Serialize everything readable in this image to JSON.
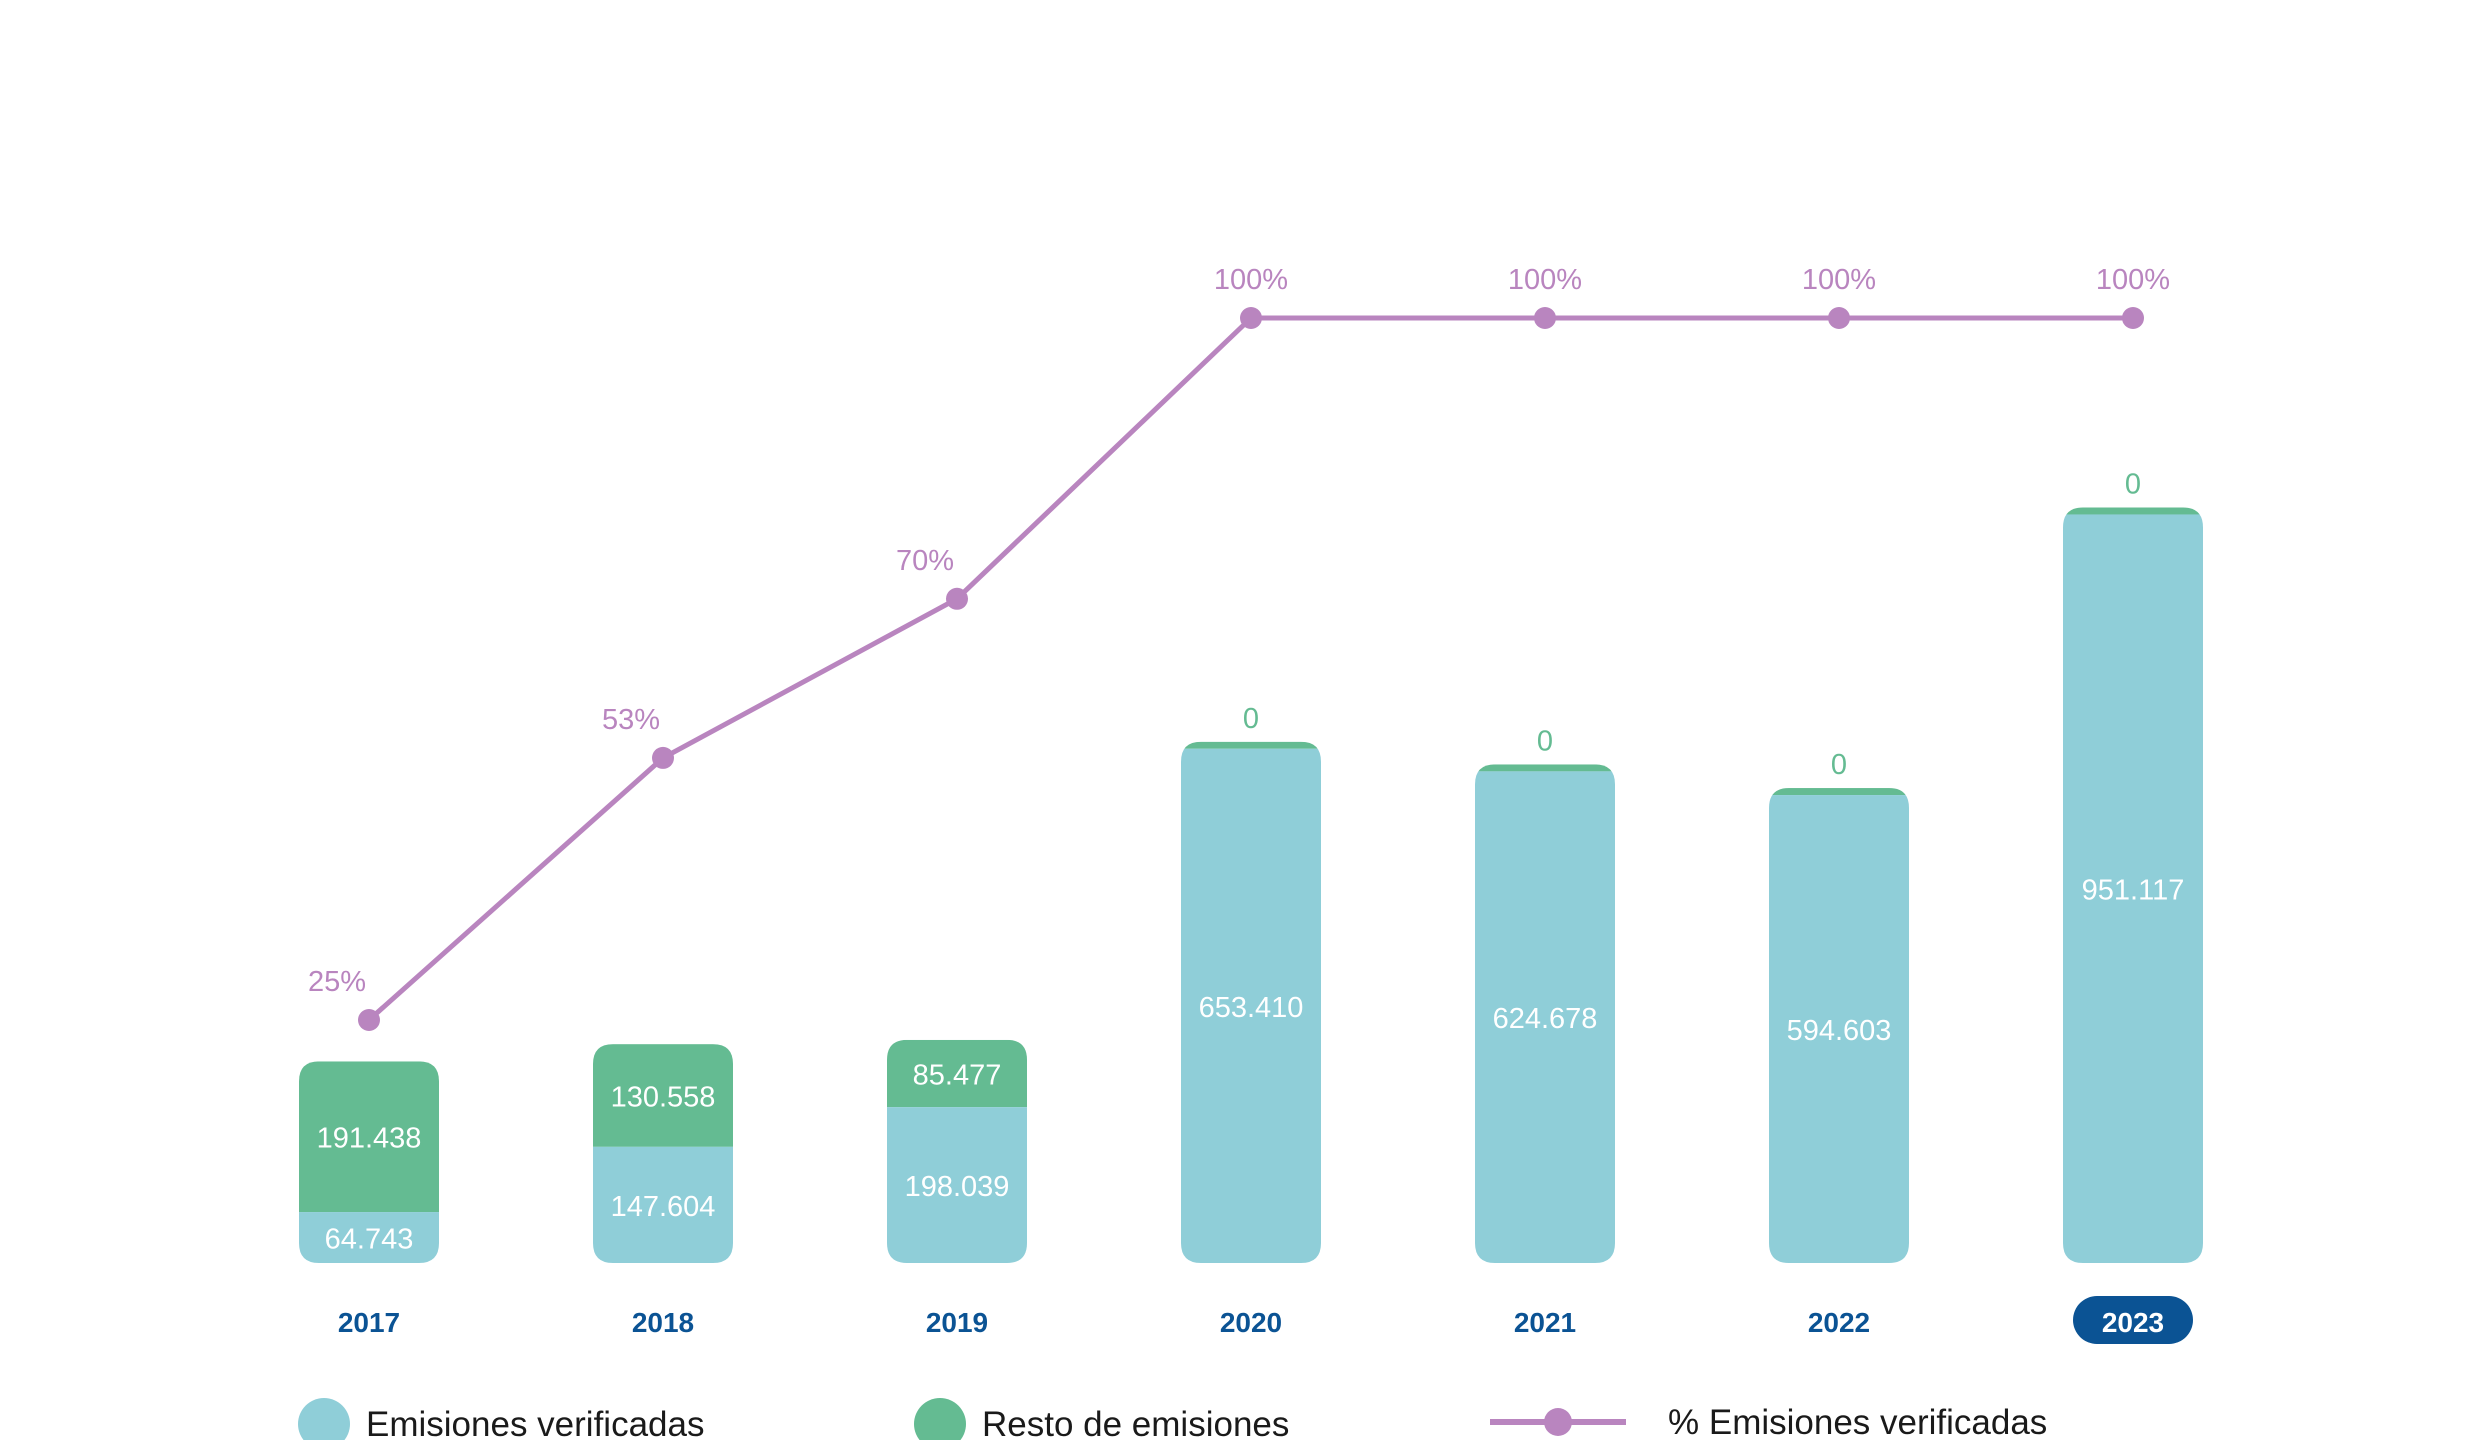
{
  "chart_data": {
    "type": "bar",
    "stacked": true,
    "categories": [
      "2017",
      "2018",
      "2019",
      "2020",
      "2021",
      "2022",
      "2023"
    ],
    "highlighted_category": "2023",
    "series": [
      {
        "name": "Emisiones verificadas",
        "color": "#8fced8",
        "values": [
          64743,
          147604,
          198039,
          653410,
          624678,
          594603,
          951117
        ],
        "labels": [
          "64.743",
          "147.604",
          "198.039",
          "653.410",
          "624.678",
          "594.603",
          "951.117"
        ]
      },
      {
        "name": "Resto de emisiones",
        "color": "#64bb92",
        "values": [
          191438,
          130558,
          85477,
          0,
          0,
          0,
          0
        ],
        "labels": [
          "191.438",
          "130.558",
          "85.477",
          "0",
          "0",
          "0",
          "0"
        ]
      }
    ],
    "line_series": {
      "name": "% Emisiones verificadas",
      "color": "#b985bf",
      "values": [
        25,
        53,
        70,
        100,
        100,
        100,
        100
      ],
      "labels": [
        "25%",
        "53%",
        "70%",
        "100%",
        "100%",
        "100%",
        "100%"
      ]
    },
    "bar_axis_range": [
      0,
      1000000
    ],
    "line_axis_range": [
      0,
      100
    ],
    "grid": false,
    "legend_position": "bottom",
    "axis_label_color": "#0b5394",
    "title": "",
    "xlabel": "",
    "ylabel": ""
  }
}
